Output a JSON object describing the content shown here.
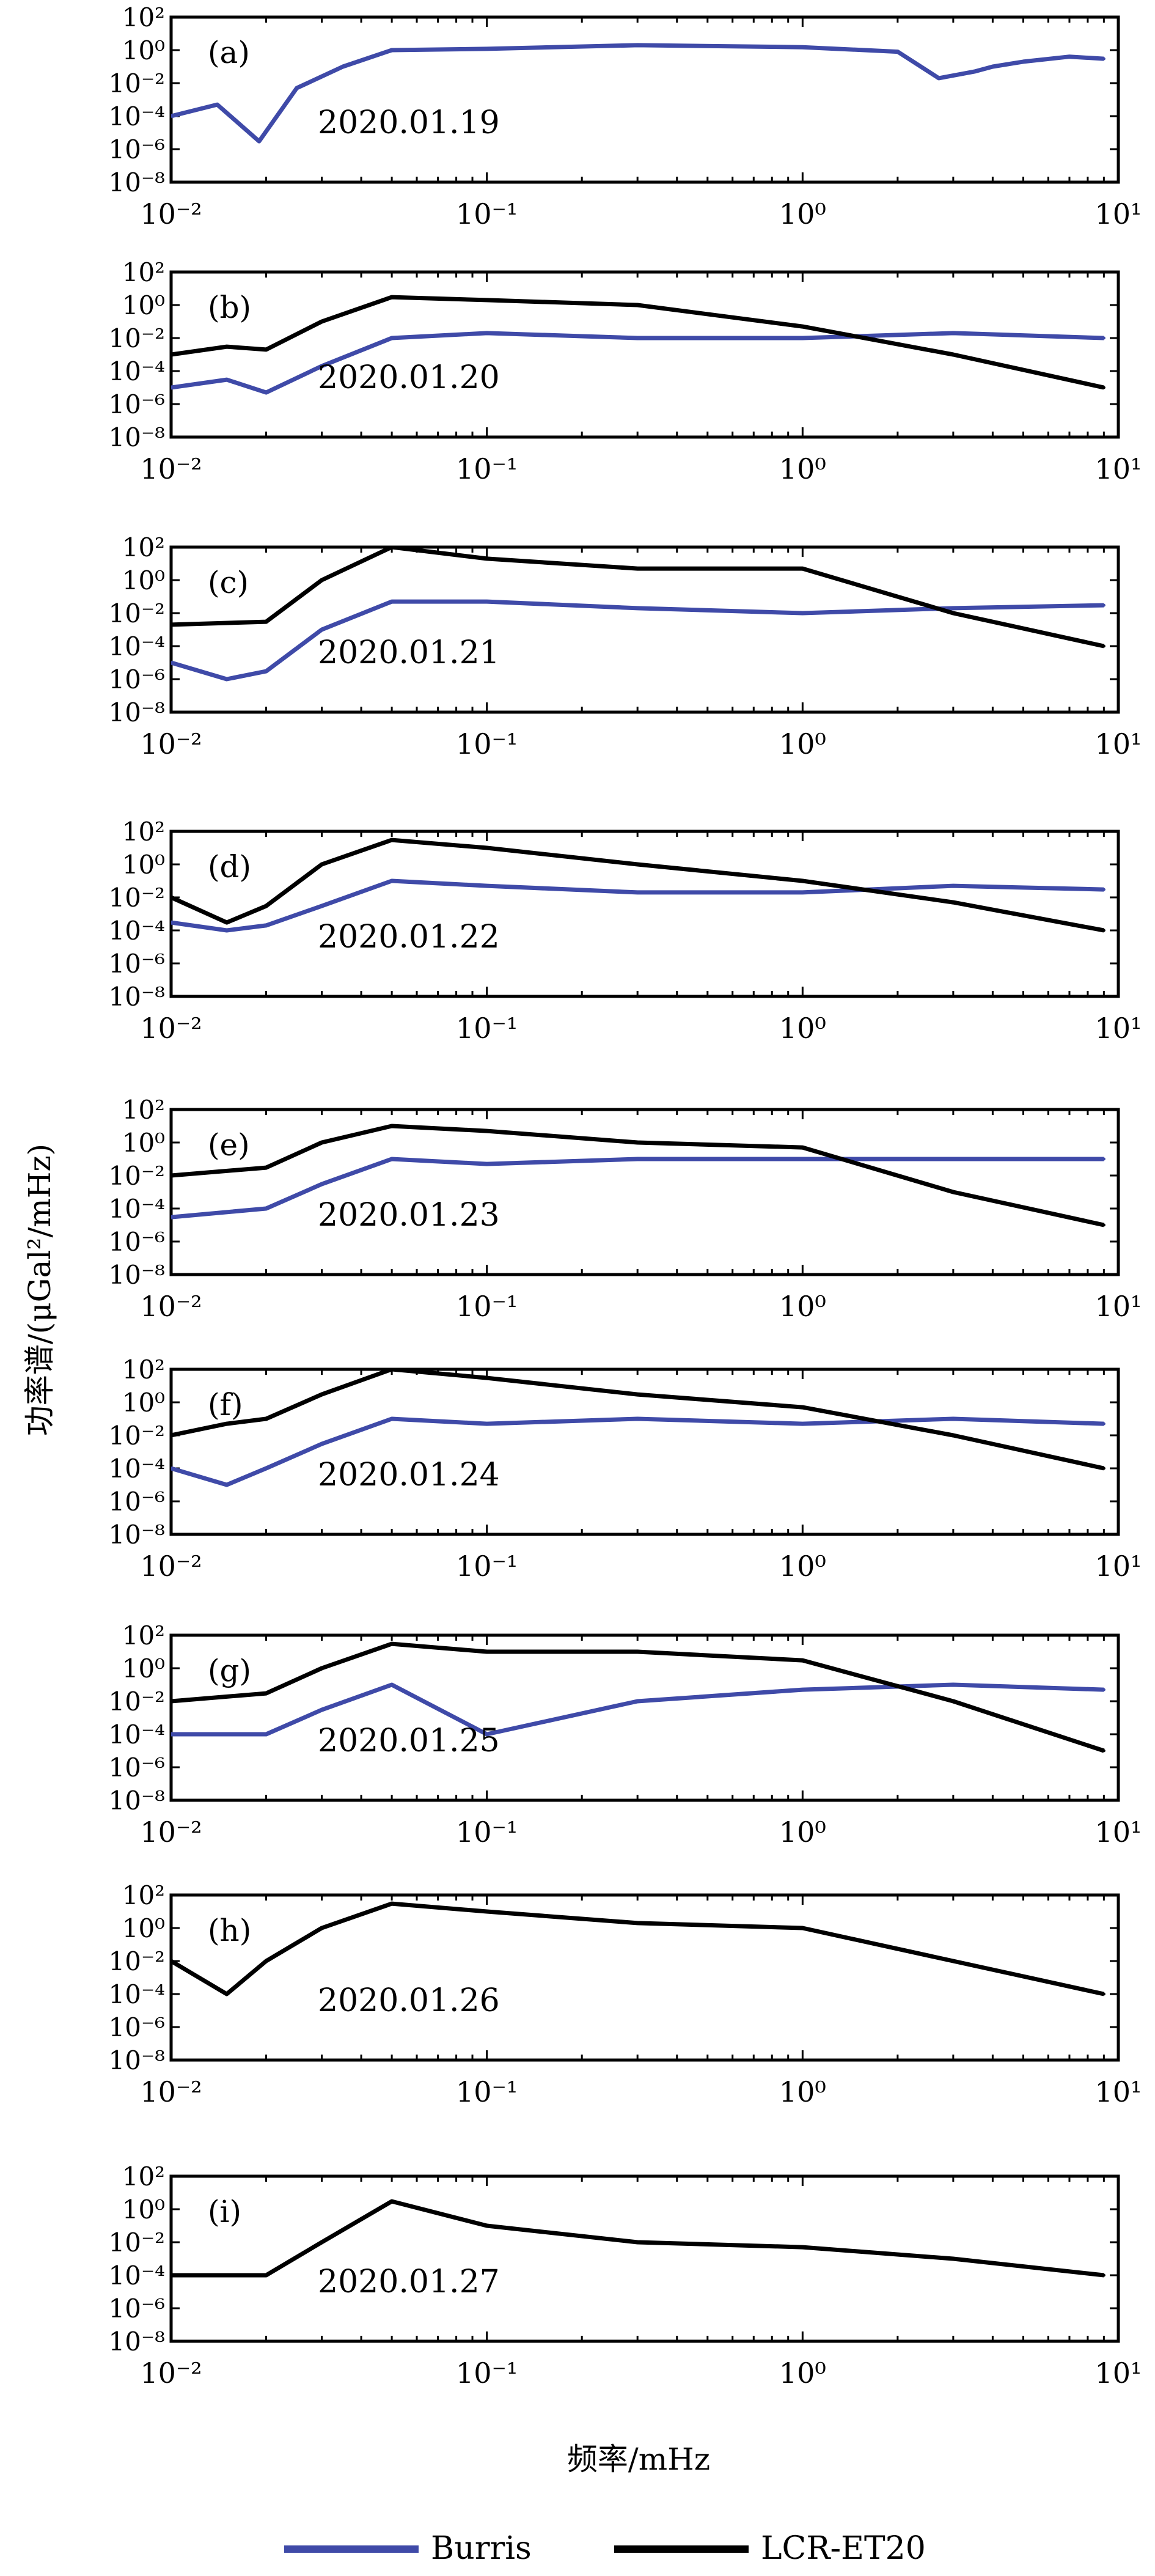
{
  "figure": {
    "ylabel": "功率谱/(μGal²/mHz)",
    "xlabel": "频率/mHz",
    "legend": [
      {
        "name": "Burris",
        "color": "#3f4aa8"
      },
      {
        "name": "LCR-ET20",
        "color": "#000000"
      }
    ]
  },
  "chart_data": [
    {
      "type": "line",
      "panel_label": "(a)",
      "annotation": "2020.01.19",
      "xscale": "log",
      "yscale": "log",
      "xlim": [
        0.01,
        10
      ],
      "ylim": [
        1e-08,
        100
      ],
      "x_ticks": [
        "10⁻²",
        "10⁻¹",
        "10⁰",
        "10¹"
      ],
      "y_ticks": [
        "10⁻⁸",
        "10⁻⁶",
        "10⁻⁴",
        "10⁻²",
        "10⁰",
        "10²"
      ],
      "series": [
        {
          "name": "Burris",
          "points": [
            [
              0.01,
              0.0001
            ],
            [
              0.014,
              0.0005
            ],
            [
              0.019,
              3e-06
            ],
            [
              0.025,
              0.005
            ],
            [
              0.035,
              0.1
            ],
            [
              0.05,
              1
            ],
            [
              0.1,
              1.2
            ],
            [
              0.3,
              2
            ],
            [
              1,
              1.5
            ],
            [
              2,
              0.8
            ],
            [
              2.7,
              0.02
            ],
            [
              3.5,
              0.05
            ],
            [
              4,
              0.1
            ],
            [
              5,
              0.2
            ],
            [
              7,
              0.4
            ],
            [
              9,
              0.3
            ]
          ]
        }
      ]
    },
    {
      "type": "line",
      "panel_label": "(b)",
      "annotation": "2020.01.20",
      "xscale": "log",
      "yscale": "log",
      "xlim": [
        0.01,
        10
      ],
      "ylim": [
        1e-08,
        100
      ],
      "x_ticks": [
        "10⁻²",
        "10⁻¹",
        "10⁰",
        "10¹"
      ],
      "y_ticks": [
        "10⁻⁸",
        "10⁻⁶",
        "10⁻⁴",
        "10⁻²",
        "10⁰",
        "10²"
      ],
      "series": [
        {
          "name": "Burris",
          "points": [
            [
              0.01,
              1e-05
            ],
            [
              0.015,
              3e-05
            ],
            [
              0.02,
              5e-06
            ],
            [
              0.03,
              0.0002
            ],
            [
              0.05,
              0.01
            ],
            [
              0.1,
              0.02
            ],
            [
              0.3,
              0.01
            ],
            [
              1,
              0.01
            ],
            [
              3,
              0.02
            ],
            [
              9,
              0.01
            ]
          ]
        },
        {
          "name": "LCR-ET20",
          "points": [
            [
              0.01,
              0.001
            ],
            [
              0.015,
              0.003
            ],
            [
              0.02,
              0.002
            ],
            [
              0.03,
              0.1
            ],
            [
              0.05,
              3
            ],
            [
              0.1,
              2
            ],
            [
              0.3,
              1
            ],
            [
              1,
              0.05
            ],
            [
              3,
              0.001
            ],
            [
              9,
              1e-05
            ]
          ]
        }
      ]
    },
    {
      "type": "line",
      "panel_label": "(c)",
      "annotation": "2020.01.21",
      "xscale": "log",
      "yscale": "log",
      "xlim": [
        0.01,
        10
      ],
      "ylim": [
        1e-08,
        100
      ],
      "x_ticks": [
        "10⁻²",
        "10⁻¹",
        "10⁰",
        "10¹"
      ],
      "y_ticks": [
        "10⁻⁸",
        "10⁻⁶",
        "10⁻⁴",
        "10⁻²",
        "10⁰",
        "10²"
      ],
      "series": [
        {
          "name": "Burris",
          "points": [
            [
              0.01,
              1e-05
            ],
            [
              0.015,
              1e-06
            ],
            [
              0.02,
              3e-06
            ],
            [
              0.03,
              0.001
            ],
            [
              0.05,
              0.05
            ],
            [
              0.1,
              0.05
            ],
            [
              0.3,
              0.02
            ],
            [
              1,
              0.01
            ],
            [
              3,
              0.02
            ],
            [
              9,
              0.03
            ]
          ]
        },
        {
          "name": "LCR-ET20",
          "points": [
            [
              0.01,
              0.002
            ],
            [
              0.02,
              0.003
            ],
            [
              0.03,
              1
            ],
            [
              0.05,
              100
            ],
            [
              0.1,
              20
            ],
            [
              0.3,
              5
            ],
            [
              1,
              5
            ],
            [
              3,
              0.01
            ],
            [
              9,
              0.0001
            ]
          ]
        }
      ]
    },
    {
      "type": "line",
      "panel_label": "(d)",
      "annotation": "2020.01.22",
      "xscale": "log",
      "yscale": "log",
      "xlim": [
        0.01,
        10
      ],
      "ylim": [
        1e-08,
        100
      ],
      "x_ticks": [
        "10⁻²",
        "10⁻¹",
        "10⁰",
        "10¹"
      ],
      "y_ticks": [
        "10⁻⁸",
        "10⁻⁶",
        "10⁻⁴",
        "10⁻²",
        "10⁰",
        "10²"
      ],
      "series": [
        {
          "name": "Burris",
          "points": [
            [
              0.01,
              0.0003
            ],
            [
              0.015,
              0.0001
            ],
            [
              0.02,
              0.0002
            ],
            [
              0.03,
              0.003
            ],
            [
              0.05,
              0.1
            ],
            [
              0.1,
              0.05
            ],
            [
              0.3,
              0.02
            ],
            [
              1,
              0.02
            ],
            [
              3,
              0.05
            ],
            [
              9,
              0.03
            ]
          ]
        },
        {
          "name": "LCR-ET20",
          "points": [
            [
              0.01,
              0.01
            ],
            [
              0.015,
              0.0003
            ],
            [
              0.02,
              0.003
            ],
            [
              0.03,
              1
            ],
            [
              0.05,
              30
            ],
            [
              0.1,
              10
            ],
            [
              0.3,
              1
            ],
            [
              1,
              0.1
            ],
            [
              3,
              0.005
            ],
            [
              9,
              0.0001
            ]
          ]
        }
      ]
    },
    {
      "type": "line",
      "panel_label": "(e)",
      "annotation": "2020.01.23",
      "xscale": "log",
      "yscale": "log",
      "xlim": [
        0.01,
        10
      ],
      "ylim": [
        1e-08,
        100
      ],
      "x_ticks": [
        "10⁻²",
        "10⁻¹",
        "10⁰",
        "10¹"
      ],
      "y_ticks": [
        "10⁻⁸",
        "10⁻⁶",
        "10⁻⁴",
        "10⁻²",
        "10⁰",
        "10²"
      ],
      "series": [
        {
          "name": "Burris",
          "points": [
            [
              0.01,
              3e-05
            ],
            [
              0.02,
              0.0001
            ],
            [
              0.03,
              0.003
            ],
            [
              0.05,
              0.1
            ],
            [
              0.1,
              0.05
            ],
            [
              0.3,
              0.1
            ],
            [
              1,
              0.1
            ],
            [
              3,
              0.1
            ],
            [
              9,
              0.1
            ]
          ]
        },
        {
          "name": "LCR-ET20",
          "points": [
            [
              0.01,
              0.01
            ],
            [
              0.02,
              0.03
            ],
            [
              0.03,
              1
            ],
            [
              0.05,
              10
            ],
            [
              0.1,
              5
            ],
            [
              0.3,
              1
            ],
            [
              1,
              0.5
            ],
            [
              3,
              0.001
            ],
            [
              9,
              1e-05
            ]
          ]
        }
      ]
    },
    {
      "type": "line",
      "panel_label": "(f)",
      "annotation": "2020.01.24",
      "xscale": "log",
      "yscale": "log",
      "xlim": [
        0.01,
        10
      ],
      "ylim": [
        1e-08,
        100
      ],
      "x_ticks": [
        "10⁻²",
        "10⁻¹",
        "10⁰",
        "10¹"
      ],
      "y_ticks": [
        "10⁻⁸",
        "10⁻⁶",
        "10⁻⁴",
        "10⁻²",
        "10⁰",
        "10²"
      ],
      "series": [
        {
          "name": "Burris",
          "points": [
            [
              0.01,
              0.0001
            ],
            [
              0.015,
              1e-05
            ],
            [
              0.02,
              0.0001
            ],
            [
              0.03,
              0.003
            ],
            [
              0.05,
              0.1
            ],
            [
              0.1,
              0.05
            ],
            [
              0.3,
              0.1
            ],
            [
              1,
              0.05
            ],
            [
              3,
              0.1
            ],
            [
              9,
              0.05
            ]
          ]
        },
        {
          "name": "LCR-ET20",
          "points": [
            [
              0.01,
              0.01
            ],
            [
              0.015,
              0.05
            ],
            [
              0.02,
              0.1
            ],
            [
              0.03,
              3
            ],
            [
              0.05,
              100
            ],
            [
              0.1,
              30
            ],
            [
              0.3,
              3
            ],
            [
              1,
              0.5
            ],
            [
              3,
              0.01
            ],
            [
              9,
              0.0001
            ]
          ]
        }
      ]
    },
    {
      "type": "line",
      "panel_label": "(g)",
      "annotation": "2020.01.25",
      "xscale": "log",
      "yscale": "log",
      "xlim": [
        0.01,
        10
      ],
      "ylim": [
        1e-08,
        100
      ],
      "x_ticks": [
        "10⁻²",
        "10⁻¹",
        "10⁰",
        "10¹"
      ],
      "y_ticks": [
        "10⁻⁸",
        "10⁻⁶",
        "10⁻⁴",
        "10⁻²",
        "10⁰",
        "10²"
      ],
      "series": [
        {
          "name": "Burris",
          "points": [
            [
              0.01,
              0.0001
            ],
            [
              0.02,
              0.0001
            ],
            [
              0.03,
              0.003
            ],
            [
              0.05,
              0.1
            ],
            [
              0.1,
              0.0001
            ],
            [
              0.3,
              0.01
            ],
            [
              1,
              0.05
            ],
            [
              3,
              0.1
            ],
            [
              9,
              0.05
            ]
          ]
        },
        {
          "name": "LCR-ET20",
          "points": [
            [
              0.01,
              0.01
            ],
            [
              0.02,
              0.03
            ],
            [
              0.03,
              1
            ],
            [
              0.05,
              30
            ],
            [
              0.1,
              10
            ],
            [
              0.3,
              10
            ],
            [
              1,
              3
            ],
            [
              3,
              0.01
            ],
            [
              9,
              1e-05
            ]
          ]
        }
      ]
    },
    {
      "type": "line",
      "panel_label": "(h)",
      "annotation": "2020.01.26",
      "xscale": "log",
      "yscale": "log",
      "xlim": [
        0.01,
        10
      ],
      "ylim": [
        1e-08,
        100
      ],
      "x_ticks": [
        "10⁻²",
        "10⁻¹",
        "10⁰",
        "10¹"
      ],
      "y_ticks": [
        "10⁻⁸",
        "10⁻⁶",
        "10⁻⁴",
        "10⁻²",
        "10⁰",
        "10²"
      ],
      "series": [
        {
          "name": "LCR-ET20",
          "points": [
            [
              0.01,
              0.01
            ],
            [
              0.015,
              0.0001
            ],
            [
              0.02,
              0.01
            ],
            [
              0.03,
              1
            ],
            [
              0.05,
              30
            ],
            [
              0.1,
              10
            ],
            [
              0.3,
              2
            ],
            [
              1,
              1
            ],
            [
              3,
              0.01
            ],
            [
              9,
              0.0001
            ]
          ]
        }
      ]
    },
    {
      "type": "line",
      "panel_label": "(i)",
      "annotation": "2020.01.27",
      "xscale": "log",
      "yscale": "log",
      "xlim": [
        0.01,
        10
      ],
      "ylim": [
        1e-08,
        100
      ],
      "x_ticks": [
        "10⁻²",
        "10⁻¹",
        "10⁰",
        "10¹"
      ],
      "y_ticks": [
        "10⁻⁸",
        "10⁻⁶",
        "10⁻⁴",
        "10⁻²",
        "10⁰",
        "10²"
      ],
      "series": [
        {
          "name": "LCR-ET20",
          "points": [
            [
              0.01,
              0.0001
            ],
            [
              0.02,
              0.0001
            ],
            [
              0.03,
              0.01
            ],
            [
              0.05,
              3
            ],
            [
              0.1,
              0.1
            ],
            [
              0.3,
              0.01
            ],
            [
              1,
              0.005
            ],
            [
              3,
              0.001
            ],
            [
              9,
              0.0001
            ]
          ]
        }
      ]
    }
  ]
}
